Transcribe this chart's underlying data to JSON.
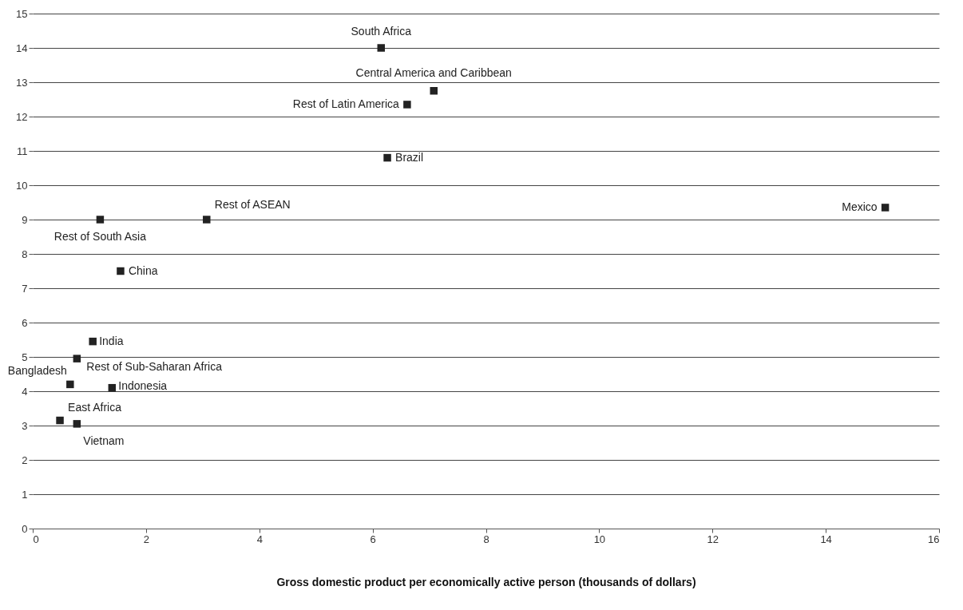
{
  "chart_data": {
    "type": "scatter",
    "xlabel": "Gross domestic product per economically active person (thousands of dollars)",
    "x": [
      6.15,
      7.08,
      6.61,
      6.26,
      15.05,
      3.07,
      1.19,
      1.55,
      1.06,
      0.78,
      0.66,
      1.4,
      0.48,
      0.78
    ],
    "values": [
      14.0,
      12.75,
      12.35,
      10.8,
      9.35,
      9.0,
      9.0,
      7.5,
      5.45,
      4.95,
      4.2,
      4.1,
      3.15,
      3.05
    ],
    "color": "#222222",
    "marker": "square",
    "xlim": [
      0,
      16
    ],
    "xticks": [
      0,
      2,
      4,
      6,
      8,
      10,
      12,
      14,
      16
    ],
    "ylim": [
      0,
      15
    ],
    "yticks": [
      0,
      1,
      2,
      3,
      4,
      5,
      6,
      7,
      8,
      9,
      10,
      11,
      12,
      13,
      14,
      15
    ],
    "grid": "y",
    "annotations": [
      {
        "text": "South Africa",
        "x": 6.15,
        "y": 14.0
      },
      {
        "text": "Central America and Caribbean",
        "x": 7.08,
        "y": 12.75
      },
      {
        "text": "Rest of Latin America",
        "x": 6.61,
        "y": 12.35
      },
      {
        "text": "Brazil",
        "x": 6.26,
        "y": 10.8
      },
      {
        "text": "Mexico",
        "x": 15.05,
        "y": 9.35
      },
      {
        "text": "Rest of ASEAN",
        "x": 3.07,
        "y": 9.0
      },
      {
        "text": "Rest of South Asia",
        "x": 1.19,
        "y": 9.0
      },
      {
        "text": "China",
        "x": 1.55,
        "y": 7.5
      },
      {
        "text": "India",
        "x": 1.06,
        "y": 5.45
      },
      {
        "text": "Rest of Sub-Saharan Africa",
        "x": 0.78,
        "y": 4.95
      },
      {
        "text": "Bangladesh",
        "x": 0.66,
        "y": 4.2
      },
      {
        "text": "Indonesia",
        "x": 1.4,
        "y": 4.1
      },
      {
        "text": "East Africa",
        "x": 0.48,
        "y": 3.15
      },
      {
        "text": "Vietnam",
        "x": 0.78,
        "y": 3.05
      }
    ]
  }
}
